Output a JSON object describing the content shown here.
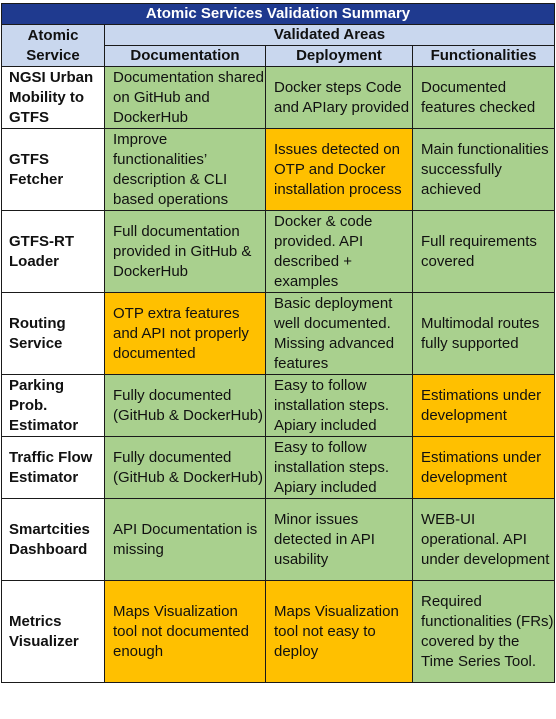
{
  "title": "Atomic Services Validation Summary",
  "header": {
    "service_col": "Atomic Service",
    "validated_areas": "Validated Areas",
    "columns": [
      "Documentation",
      "Deployment",
      "Functionalities"
    ]
  },
  "colors": {
    "title_bg": "#1f3a8f",
    "header_bg": "#c9d7ee",
    "ok": "#a9d08e",
    "issue": "#ffc000"
  },
  "rows": [
    {
      "service": "NGSI Urban Mobility to GTFS",
      "documentation": {
        "text": "Documentation shared on GitHub and DockerHub",
        "status": "ok"
      },
      "deployment": {
        "text": "Docker steps Code and APIary provided",
        "status": "ok"
      },
      "functionalities": {
        "text": "Documented features checked",
        "status": "ok"
      }
    },
    {
      "service": "GTFS Fetcher",
      "documentation": {
        "text": "Improve functionalities’ description & CLI based operations",
        "status": "ok"
      },
      "deployment": {
        "text": "Issues detected on OTP and Docker installation process",
        "status": "issue"
      },
      "functionalities": {
        "text": "Main functionalities successfully achieved",
        "status": "ok"
      }
    },
    {
      "service": "GTFS-RT Loader",
      "documentation": {
        "text": "Full documentation provided in GitHub & DockerHub",
        "status": "ok"
      },
      "deployment": {
        "text": "Docker & code provided. API described + examples",
        "status": "ok"
      },
      "functionalities": {
        "text": "Full requirements covered",
        "status": "ok"
      }
    },
    {
      "service": "Routing Service",
      "documentation": {
        "text": "OTP extra features and API not properly documented",
        "status": "issue"
      },
      "deployment": {
        "text": "Basic deployment well documented. Missing advanced features",
        "status": "ok"
      },
      "functionalities": {
        "text": "Multimodal routes fully supported",
        "status": "ok"
      }
    },
    {
      "service": "Parking Prob. Estimator",
      "documentation": {
        "text": "Fully documented (GitHub & DockerHub)",
        "status": "ok"
      },
      "deployment": {
        "text": "Easy to follow installation steps. Apiary included",
        "status": "ok"
      },
      "functionalities": {
        "text": "Estimations under development",
        "status": "issue"
      }
    },
    {
      "service": "Traffic Flow Estimator",
      "documentation": {
        "text": "Fully documented (GitHub & DockerHub)",
        "status": "ok"
      },
      "deployment": {
        "text": "Easy to follow installation steps. Apiary included",
        "status": "ok"
      },
      "functionalities": {
        "text": "Estimations under development",
        "status": "issue"
      }
    },
    {
      "service": "Smartcities Dashboard",
      "documentation": {
        "text": "API Documentation is missing",
        "status": "ok"
      },
      "deployment": {
        "text": "Minor issues detected in API usability",
        "status": "ok"
      },
      "functionalities": {
        "text": "WEB-UI operational. API under development",
        "status": "ok"
      }
    },
    {
      "service": "Metrics Visualizer",
      "documentation": {
        "text": "Maps Visualization tool not documented enough",
        "status": "issue"
      },
      "deployment": {
        "text": "Maps Visualization tool not easy to deploy",
        "status": "issue"
      },
      "functionalities": {
        "text": "Required functionalities (FRs) covered by the Time Series Tool.",
        "status": "ok"
      }
    }
  ]
}
